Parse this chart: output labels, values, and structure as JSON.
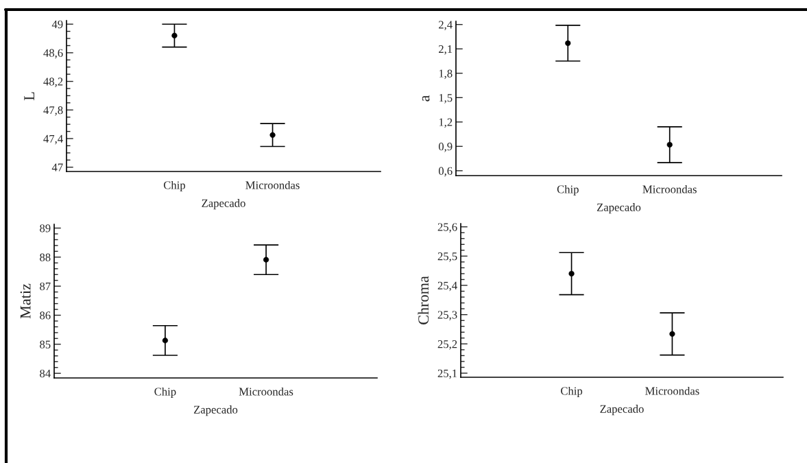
{
  "chart_data": [
    {
      "type": "scatter",
      "xlabel": "Zapecado",
      "ylabel": "L",
      "categories": [
        "Chip",
        "Microondas"
      ],
      "marker": "circle",
      "grid": false,
      "series": [
        {
          "color": "#000000",
          "values": [
            48.84,
            47.45
          ],
          "errors": [
            0.16,
            0.16
          ]
        }
      ],
      "ylim": [
        46.94,
        49.05
      ],
      "yticks": [
        {
          "value": 47,
          "label": "47"
        },
        {
          "value": 47.1,
          "label": null
        },
        {
          "value": 47.2,
          "label": null
        },
        {
          "value": 47.3,
          "label": null
        },
        {
          "value": 47.4,
          "label": "47,4"
        },
        {
          "value": 47.5,
          "label": null
        },
        {
          "value": 47.6,
          "label": null
        },
        {
          "value": 47.7,
          "label": null
        },
        {
          "value": 47.8,
          "label": "47,8"
        },
        {
          "value": 47.9,
          "label": null
        },
        {
          "value": 48.0,
          "label": null
        },
        {
          "value": 48.1,
          "label": null
        },
        {
          "value": 48.2,
          "label": "48,2"
        },
        {
          "value": 48.3,
          "label": null
        },
        {
          "value": 48.4,
          "label": null
        },
        {
          "value": 48.5,
          "label": null
        },
        {
          "value": 48.6,
          "label": "48,6"
        },
        {
          "value": 48.7,
          "label": null
        },
        {
          "value": 48.8,
          "label": null
        },
        {
          "value": 48.9,
          "label": null
        },
        {
          "value": 49,
          "label": "49"
        }
      ]
    },
    {
      "type": "scatter",
      "xlabel": "Zapecado",
      "ylabel": "a",
      "categories": [
        "Chip",
        "Microondas"
      ],
      "marker": "circle",
      "grid": false,
      "series": [
        {
          "color": "#000000",
          "values": [
            2.17,
            0.92
          ],
          "errors": [
            0.22,
            0.22
          ]
        }
      ],
      "ylim": [
        0.54,
        2.44
      ],
      "yticks": [
        {
          "value": 0.6,
          "label": "0,6"
        },
        {
          "value": 0.9,
          "label": "0,9"
        },
        {
          "value": 1.2,
          "label": "1,2"
        },
        {
          "value": 1.5,
          "label": "1,5"
        },
        {
          "value": 1.8,
          "label": "1,8"
        },
        {
          "value": 2.1,
          "label": "2,1"
        },
        {
          "value": 2.4,
          "label": "2,4"
        }
      ]
    },
    {
      "type": "scatter",
      "xlabel": "Zapecado",
      "ylabel": "Matiz",
      "categories": [
        "Chip",
        "Microondas"
      ],
      "marker": "circle",
      "grid": false,
      "series": [
        {
          "color": "#000000",
          "values": [
            85.13,
            87.91
          ],
          "errors": [
            0.51,
            0.51
          ]
        }
      ],
      "ylim": [
        83.84,
        89.13
      ],
      "yticks": [
        {
          "value": 84,
          "label": "84"
        },
        {
          "value": 84.2,
          "label": null
        },
        {
          "value": 84.4,
          "label": null
        },
        {
          "value": 84.6,
          "label": null
        },
        {
          "value": 84.8,
          "label": null
        },
        {
          "value": 85,
          "label": "85"
        },
        {
          "value": 85.2,
          "label": null
        },
        {
          "value": 85.4,
          "label": null
        },
        {
          "value": 85.6,
          "label": null
        },
        {
          "value": 85.8,
          "label": null
        },
        {
          "value": 86,
          "label": "86"
        },
        {
          "value": 86.2,
          "label": null
        },
        {
          "value": 86.4,
          "label": null
        },
        {
          "value": 86.6,
          "label": null
        },
        {
          "value": 86.8,
          "label": null
        },
        {
          "value": 87,
          "label": "87"
        },
        {
          "value": 87.2,
          "label": null
        },
        {
          "value": 87.4,
          "label": null
        },
        {
          "value": 87.6,
          "label": null
        },
        {
          "value": 87.8,
          "label": null
        },
        {
          "value": 88,
          "label": "88"
        },
        {
          "value": 88.2,
          "label": null
        },
        {
          "value": 88.4,
          "label": null
        },
        {
          "value": 88.6,
          "label": null
        },
        {
          "value": 88.8,
          "label": null
        },
        {
          "value": 89,
          "label": "89"
        }
      ]
    },
    {
      "type": "scatter",
      "xlabel": "Zapecado",
      "ylabel": "Chroma",
      "categories": [
        "Chip",
        "Microondas"
      ],
      "marker": "circle",
      "grid": false,
      "series": [
        {
          "color": "#000000",
          "values": [
            25.44,
            25.234
          ],
          "errors": [
            0.072,
            0.072
          ]
        }
      ],
      "ylim": [
        25.086,
        25.611
      ],
      "yticks": [
        {
          "value": 25.1,
          "label": "25,1"
        },
        {
          "value": 25.12,
          "label": null
        },
        {
          "value": 25.14,
          "label": null
        },
        {
          "value": 25.16,
          "label": null
        },
        {
          "value": 25.18,
          "label": null
        },
        {
          "value": 25.2,
          "label": "25,2"
        },
        {
          "value": 25.22,
          "label": null
        },
        {
          "value": 25.24,
          "label": null
        },
        {
          "value": 25.26,
          "label": null
        },
        {
          "value": 25.28,
          "label": null
        },
        {
          "value": 25.3,
          "label": "25,3"
        },
        {
          "value": 25.32,
          "label": null
        },
        {
          "value": 25.34,
          "label": null
        },
        {
          "value": 25.36,
          "label": null
        },
        {
          "value": 25.38,
          "label": null
        },
        {
          "value": 25.4,
          "label": "25,4"
        },
        {
          "value": 25.42,
          "label": null
        },
        {
          "value": 25.44,
          "label": null
        },
        {
          "value": 25.46,
          "label": null
        },
        {
          "value": 25.48,
          "label": null
        },
        {
          "value": 25.5,
          "label": "25,5"
        },
        {
          "value": 25.52,
          "label": null
        },
        {
          "value": 25.54,
          "label": null
        },
        {
          "value": 25.56,
          "label": null
        },
        {
          "value": 25.58,
          "label": null
        },
        {
          "value": 25.6,
          "label": "25,6"
        }
      ]
    }
  ]
}
